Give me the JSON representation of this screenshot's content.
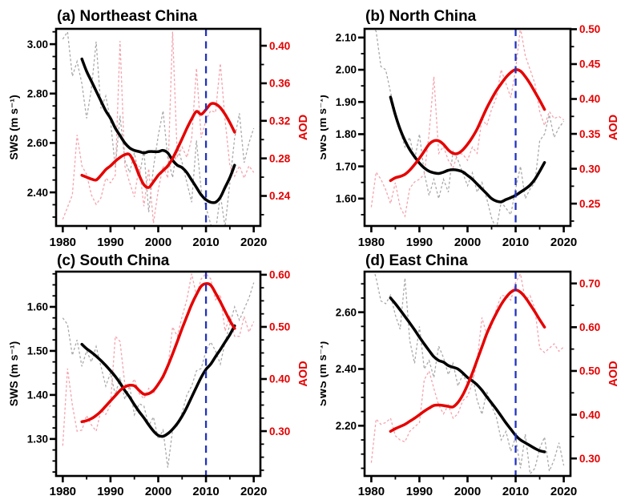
{
  "figure": {
    "description": "Four-panel time series figure comparing surface wind speed (SWS, black) and aerosol optical depth (AOD, red) over 1980-2020 for four regions of China. Thin dashed lines are annual values, thick lines are smoothed values, blue dashed vertical line marks 2010."
  },
  "chart_data": {
    "type": "line",
    "colors": {
      "sws_annual": "#a9a9a9",
      "aod_annual": "#f4a3ad",
      "sws_smoothed": "#000000",
      "aod_smoothed": "#e60000",
      "vline": "#2233bb",
      "axis": "#000000",
      "aod_text": "#e60000"
    },
    "panels": [
      {
        "id": "a",
        "title": "(a) Northeast China",
        "x_axis": {
          "ticks": [
            "1980",
            "1990",
            "2000",
            "2010",
            "2020"
          ],
          "range": [
            1978.6,
            2021.4
          ],
          "minor_step": 5
        },
        "sws_axis": {
          "label": "SWS (m s⁻¹)",
          "ticks": [
            "2.40",
            "2.60",
            "2.80",
            "3.00"
          ],
          "range": [
            2.264,
            3.062
          ],
          "minor_step": 0.05
        },
        "aod_axis": {
          "label": "AOD",
          "ticks": [
            "0.24",
            "0.28",
            "0.32",
            "0.36",
            "0.40"
          ],
          "range": [
            0.208,
            0.418
          ],
          "minor_step": 0.02
        },
        "vline_year": 2010,
        "series": {
          "sws_annual": {
            "start_year": 1980,
            "values": [
              3.02,
              3.05,
              2.87,
              2.93,
              2.84,
              2.7,
              2.82,
              3.01,
              2.74,
              2.79,
              2.69,
              2.5,
              2.71,
              2.53,
              2.48,
              2.56,
              2.46,
              2.57,
              2.32,
              2.5,
              2.63,
              2.73,
              2.54,
              2.46,
              2.59,
              2.52,
              2.44,
              2.36,
              2.61,
              2.41,
              2.34,
              2.27,
              2.24,
              2.39,
              2.26,
              2.44,
              2.62,
              2.72,
              2.52,
              2.6,
              2.66
            ]
          },
          "aod_annual": {
            "start_year": 1980,
            "values": [
              0.215,
              0.228,
              0.241,
              0.305,
              0.272,
              0.263,
              0.241,
              0.231,
              0.238,
              0.259,
              0.254,
              0.262,
              0.405,
              0.272,
              0.254,
              0.239,
              0.272,
              0.229,
              0.269,
              0.211,
              0.246,
              0.272,
              0.259,
              0.415,
              0.281,
              0.292,
              0.281,
              0.301,
              0.376,
              0.302,
              0.321,
              0.331,
              0.329,
              0.381,
              0.321,
              0.272,
              0.261,
              0.272,
              0.259,
              0.272,
              0.265
            ]
          },
          "sws_smoothed": {
            "start_year": 1984,
            "values": [
              2.94,
              2.89,
              2.85,
              2.81,
              2.77,
              2.73,
              2.7,
              2.66,
              2.63,
              2.6,
              2.58,
              2.57,
              2.565,
              2.56,
              2.565,
              2.565,
              2.565,
              2.57,
              2.56,
              2.53,
              2.51,
              2.5,
              2.48,
              2.45,
              2.42,
              2.39,
              2.37,
              2.36,
              2.36,
              2.38,
              2.42,
              2.46,
              2.51
            ]
          },
          "aod_smoothed": {
            "start_year": 1984,
            "values": [
              0.262,
              0.26,
              0.258,
              0.257,
              0.262,
              0.268,
              0.272,
              0.277,
              0.281,
              0.284,
              0.284,
              0.275,
              0.262,
              0.252,
              0.249,
              0.255,
              0.262,
              0.267,
              0.272,
              0.28,
              0.29,
              0.301,
              0.312,
              0.322,
              0.33,
              0.327,
              0.332,
              0.338,
              0.338,
              0.334,
              0.327,
              0.318,
              0.308
            ]
          }
        }
      },
      {
        "id": "b",
        "title": "(b) North China",
        "x_axis": {
          "ticks": [
            "1980",
            "1990",
            "2000",
            "2010",
            "2020"
          ],
          "range": [
            1978.6,
            2021.4
          ],
          "minor_step": 5
        },
        "sws_axis": {
          "label": "SWS (m s⁻¹)",
          "ticks": [
            "1.60",
            "1.70",
            "1.80",
            "1.90",
            "2.00",
            "2.10"
          ],
          "range": [
            1.515,
            2.127
          ],
          "minor_step": 0.05
        },
        "aod_axis": {
          "label": "AOD",
          "ticks": [
            "0.25",
            "0.30",
            "0.35",
            "0.40",
            "0.45",
            "0.50"
          ],
          "range": [
            0.218,
            0.5005
          ],
          "minor_step": 0.025
        },
        "vline_year": 2010,
        "series": {
          "sws_annual": {
            "start_year": 1980,
            "values": [
              2.13,
              2.12,
              2.01,
              2.0,
              1.93,
              1.87,
              1.81,
              1.76,
              1.79,
              1.72,
              1.8,
              1.68,
              1.61,
              1.66,
              1.6,
              1.66,
              1.62,
              1.75,
              1.72,
              1.68,
              1.64,
              1.68,
              1.62,
              1.65,
              1.6,
              1.54,
              1.505,
              1.59,
              1.57,
              1.55,
              1.63,
              1.7,
              1.6,
              1.63,
              1.65,
              1.78,
              1.8,
              1.86,
              1.79,
              1.82,
              1.84
            ]
          },
          "aod_annual": {
            "start_year": 1980,
            "values": [
              0.245,
              0.295,
              0.285,
              0.27,
              0.25,
              0.28,
              0.245,
              0.232,
              0.272,
              0.281,
              0.285,
              0.292,
              0.35,
              0.432,
              0.322,
              0.332,
              0.312,
              0.302,
              0.322,
              0.321,
              0.312,
              0.331,
              0.322,
              0.372,
              0.362,
              0.385,
              0.402,
              0.442,
              0.422,
              0.402,
              0.442,
              0.502,
              0.462,
              0.442,
              0.422,
              0.382,
              0.362,
              0.382,
              0.372,
              0.375,
              0.37
            ]
          },
          "sws_smoothed": {
            "start_year": 1984,
            "values": [
              1.915,
              1.86,
              1.815,
              1.78,
              1.752,
              1.73,
              1.71,
              1.695,
              1.685,
              1.68,
              1.678,
              1.682,
              1.688,
              1.69,
              1.688,
              1.683,
              1.672,
              1.66,
              1.645,
              1.63,
              1.615,
              1.6,
              1.592,
              1.59,
              1.597,
              1.603,
              1.61,
              1.62,
              1.63,
              1.642,
              1.66,
              1.685,
              1.712
            ]
          },
          "aod_smoothed": {
            "start_year": 1984,
            "values": [
              0.283,
              0.287,
              0.289,
              0.292,
              0.298,
              0.306,
              0.315,
              0.325,
              0.335,
              0.34,
              0.34,
              0.335,
              0.327,
              0.322,
              0.322,
              0.327,
              0.335,
              0.345,
              0.357,
              0.372,
              0.387,
              0.4,
              0.412,
              0.422,
              0.431,
              0.438,
              0.442,
              0.44,
              0.432,
              0.422,
              0.41,
              0.398,
              0.385
            ]
          }
        }
      },
      {
        "id": "c",
        "title": "(c) South China",
        "x_axis": {
          "ticks": [
            "1980",
            "1990",
            "2000",
            "2010",
            "2020"
          ],
          "range": [
            1978.6,
            2021.4
          ],
          "minor_step": 5
        },
        "sws_axis": {
          "label": "SWS (m s⁻¹)",
          "ticks": [
            "1.30",
            "1.40",
            "1.50",
            "1.60"
          ],
          "range": [
            1.216,
            1.68
          ],
          "minor_step": 0.025
        },
        "aod_axis": {
          "label": "AOD",
          "ticks": [
            "0.30",
            "0.40",
            "0.50",
            "0.60"
          ],
          "range": [
            0.214,
            0.606
          ],
          "minor_step": 0.025
        },
        "vline_year": 2010,
        "series": {
          "sws_annual": {
            "start_year": 1980,
            "values": [
              1.575,
              1.56,
              1.49,
              1.525,
              1.465,
              1.5,
              1.475,
              1.51,
              1.465,
              1.42,
              1.45,
              1.4,
              1.44,
              1.39,
              1.42,
              1.355,
              1.38,
              1.375,
              1.33,
              1.35,
              1.3,
              1.32,
              1.235,
              1.32,
              1.33,
              1.36,
              1.4,
              1.42,
              1.455,
              1.46,
              1.5,
              1.52,
              1.5,
              1.47,
              1.52,
              1.56,
              1.6,
              1.57,
              1.595,
              1.62,
              1.655
            ]
          },
          "aod_annual": {
            "start_year": 1980,
            "values": [
              0.272,
              0.42,
              0.35,
              0.3,
              0.302,
              0.33,
              0.312,
              0.3,
              0.34,
              0.332,
              0.35,
              0.482,
              0.472,
              0.39,
              0.382,
              0.4,
              0.372,
              0.362,
              0.382,
              0.372,
              0.39,
              0.4,
              0.42,
              0.5,
              0.482,
              0.52,
              0.552,
              0.602,
              0.56,
              0.592,
              0.602,
              0.592,
              0.552,
              0.562,
              0.492,
              0.522,
              0.482,
              0.482,
              0.52,
              0.49,
              0.51
            ]
          },
          "sws_smoothed": {
            "start_year": 1984,
            "values": [
              1.515,
              1.505,
              1.497,
              1.488,
              1.478,
              1.467,
              1.455,
              1.442,
              1.427,
              1.41,
              1.395,
              1.378,
              1.362,
              1.348,
              1.332,
              1.318,
              1.308,
              1.306,
              1.312,
              1.322,
              1.335,
              1.352,
              1.372,
              1.395,
              1.418,
              1.44,
              1.458,
              1.47,
              1.487,
              1.503,
              1.52,
              1.537,
              1.557
            ]
          },
          "aod_smoothed": {
            "start_year": 1984,
            "values": [
              0.318,
              0.32,
              0.324,
              0.33,
              0.338,
              0.348,
              0.358,
              0.368,
              0.378,
              0.385,
              0.388,
              0.387,
              0.378,
              0.371,
              0.372,
              0.378,
              0.39,
              0.405,
              0.425,
              0.448,
              0.472,
              0.497,
              0.52,
              0.543,
              0.562,
              0.578,
              0.583,
              0.58,
              0.565,
              0.548,
              0.53,
              0.512,
              0.497
            ]
          }
        }
      },
      {
        "id": "d",
        "title": "(d) East China",
        "x_axis": {
          "ticks": [
            "1980",
            "1990",
            "2000",
            "2010",
            "2020"
          ],
          "range": [
            1978.6,
            2021.4
          ],
          "minor_step": 5
        },
        "sws_axis": {
          "label": "SWS (m s⁻¹)",
          "ticks": [
            "2.20",
            "2.40",
            "2.60"
          ],
          "range": [
            2.023,
            2.743
          ],
          "minor_step": 0.05
        },
        "aod_axis": {
          "label": "AOD",
          "ticks": [
            "0.30",
            "0.40",
            "0.50",
            "0.60",
            "0.70"
          ],
          "range": [
            0.26,
            0.727
          ],
          "minor_step": 0.05
        },
        "vline_year": 2010,
        "series": {
          "sws_annual": {
            "start_year": 1980,
            "values": [
              2.78,
              2.72,
              2.64,
              2.63,
              2.66,
              2.59,
              2.54,
              2.72,
              2.5,
              2.42,
              2.55,
              2.4,
              2.43,
              2.37,
              2.48,
              2.44,
              2.38,
              2.42,
              2.34,
              2.38,
              2.35,
              2.38,
              2.29,
              2.24,
              2.32,
              2.27,
              2.23,
              2.15,
              2.18,
              2.11,
              2.16,
              2.05,
              2.17,
              2.03,
              2.05,
              2.12,
              2.16,
              2.04,
              2.08,
              2.14,
              2.06
            ]
          },
          "aod_annual": {
            "start_year": 1980,
            "values": [
              0.29,
              0.39,
              0.378,
              0.382,
              0.392,
              0.352,
              0.342,
              0.338,
              0.362,
              0.372,
              0.382,
              0.48,
              0.5,
              0.46,
              0.422,
              0.402,
              0.422,
              0.392,
              0.402,
              0.432,
              0.442,
              0.472,
              0.522,
              0.622,
              0.582,
              0.602,
              0.642,
              0.672,
              0.672,
              0.662,
              0.702,
              0.722,
              0.662,
              0.672,
              0.642,
              0.552,
              0.542,
              0.552,
              0.562,
              0.545,
              0.555
            ]
          },
          "sws_smoothed": {
            "start_year": 1984,
            "values": [
              2.65,
              2.63,
              2.608,
              2.585,
              2.562,
              2.538,
              2.512,
              2.488,
              2.465,
              2.443,
              2.43,
              2.424,
              2.412,
              2.406,
              2.4,
              2.386,
              2.37,
              2.358,
              2.344,
              2.325,
              2.302,
              2.28,
              2.258,
              2.234,
              2.21,
              2.188,
              2.166,
              2.15,
              2.14,
              2.13,
              2.12,
              2.112,
              2.108
            ]
          },
          "aod_smoothed": {
            "start_year": 1984,
            "values": [
              0.362,
              0.368,
              0.373,
              0.378,
              0.385,
              0.392,
              0.4,
              0.408,
              0.415,
              0.421,
              0.422,
              0.421,
              0.419,
              0.418,
              0.428,
              0.445,
              0.468,
              0.495,
              0.525,
              0.555,
              0.585,
              0.61,
              0.632,
              0.652,
              0.668,
              0.68,
              0.685,
              0.68,
              0.668,
              0.652,
              0.635,
              0.617,
              0.6
            ]
          }
        }
      }
    ]
  }
}
